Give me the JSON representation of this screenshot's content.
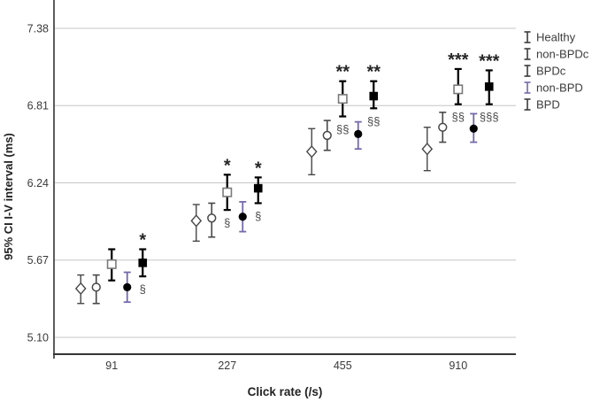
{
  "figure": {
    "background": "#ffffff",
    "text_color": "#3a3a3a",
    "grid_color": "#c6c6c6",
    "axis_color": "#4a4a4a",
    "accent_purple": "#7569ac"
  },
  "chart_data": {
    "type": "errorbar",
    "title": "",
    "xlabel": "Click rate (/s)",
    "ylabel": "95% CI I-V interval (ms)",
    "x_tick_labels": [
      "91",
      "227",
      "455",
      "910"
    ],
    "y_tick_labels": [
      "7.38",
      "6.81",
      "6.24",
      "5.67",
      "5.10"
    ],
    "y_tick_values": [
      7.38,
      6.81,
      6.24,
      5.67,
      5.1
    ],
    "grid": "horizontal",
    "legend": {
      "position": "top-right",
      "entries": [
        {
          "label": "Healthy",
          "color": "#3a3a3a"
        },
        {
          "label": "non-BPDc",
          "color": "#3a3a3a"
        },
        {
          "label": "BPDc",
          "color": "#3a3a3a"
        },
        {
          "label": "non-BPD",
          "color": "#7569ac"
        },
        {
          "label": "BPD",
          "color": "#3a3a3a"
        }
      ]
    },
    "series": [
      {
        "name": "Healthy",
        "marker": "open-diamond",
        "marker_color": "#474747",
        "bar_color": "#474747",
        "bar_width": 1.4,
        "means": [
          5.46,
          5.96,
          6.47,
          6.49
        ],
        "ci_low": [
          5.35,
          5.81,
          6.3,
          6.33
        ],
        "ci_high": [
          5.56,
          6.08,
          6.64,
          6.65
        ]
      },
      {
        "name": "non-BPDc",
        "marker": "open-circle",
        "marker_color": "#474747",
        "bar_color": "#474747",
        "bar_width": 1.6,
        "means": [
          5.47,
          5.98,
          6.59,
          6.65
        ],
        "ci_low": [
          5.35,
          5.84,
          6.48,
          6.54
        ],
        "ci_high": [
          5.56,
          6.09,
          6.7,
          6.76
        ]
      },
      {
        "name": "BPDc",
        "marker": "open-square",
        "marker_color": "#7a7a7a",
        "bar_color": "#000000",
        "bar_width": 2.2,
        "means": [
          5.64,
          6.17,
          6.86,
          6.93
        ],
        "ci_low": [
          5.52,
          6.04,
          6.73,
          6.82
        ],
        "ci_high": [
          5.75,
          6.3,
          6.99,
          7.08
        ]
      },
      {
        "name": "non-BPD",
        "marker": "filled-circle",
        "marker_color": "#000000",
        "bar_color": "#7569ac",
        "bar_width": 1.8,
        "means": [
          5.47,
          5.99,
          6.6,
          6.64
        ],
        "ci_low": [
          5.36,
          5.88,
          6.49,
          6.54
        ],
        "ci_high": [
          5.58,
          6.1,
          6.69,
          6.75
        ]
      },
      {
        "name": "BPD",
        "marker": "filled-square",
        "marker_color": "#000000",
        "bar_color": "#000000",
        "bar_width": 2.2,
        "means": [
          5.65,
          6.2,
          6.88,
          6.95
        ],
        "ci_low": [
          5.55,
          6.09,
          6.79,
          6.82
        ],
        "ci_high": [
          5.75,
          6.28,
          6.99,
          7.07
        ]
      }
    ],
    "significance": [
      {
        "category": "91",
        "series": "BPD",
        "above": "*",
        "below": "§"
      },
      {
        "category": "227",
        "series": "BPDc",
        "above": "*",
        "below": "§"
      },
      {
        "category": "227",
        "series": "BPD",
        "above": "*",
        "below": "§"
      },
      {
        "category": "455",
        "series": "BPDc",
        "above": "**",
        "below": "§§"
      },
      {
        "category": "455",
        "series": "BPD",
        "above": "**",
        "below": "§§"
      },
      {
        "category": "910",
        "series": "BPDc",
        "above": "***",
        "below": "§§"
      },
      {
        "category": "910",
        "series": "BPD",
        "above": "***",
        "below": "§§§"
      }
    ]
  }
}
